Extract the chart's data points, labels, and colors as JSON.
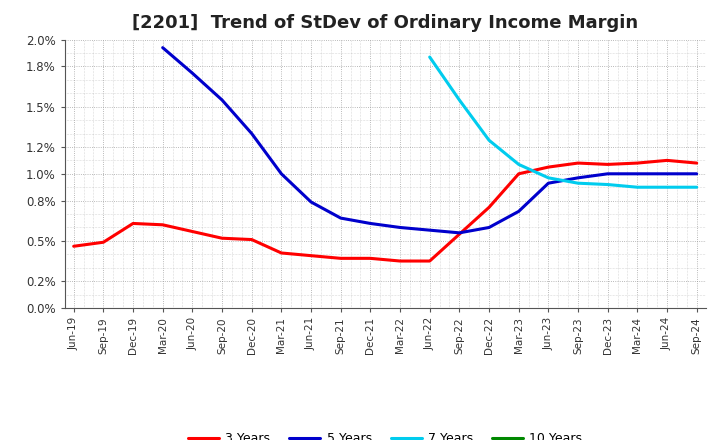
{
  "title": "[2201]  Trend of StDev of Ordinary Income Margin",
  "title_fontsize": 13,
  "background_color": "#ffffff",
  "plot_bg_color": "#ffffff",
  "grid_color": "#999999",
  "x_labels": [
    "Jun-19",
    "Sep-19",
    "Dec-19",
    "Mar-20",
    "Jun-20",
    "Sep-20",
    "Dec-20",
    "Mar-21",
    "Jun-21",
    "Sep-21",
    "Dec-21",
    "Mar-22",
    "Jun-22",
    "Sep-22",
    "Dec-22",
    "Mar-23",
    "Jun-23",
    "Sep-23",
    "Dec-23",
    "Mar-24",
    "Jun-24",
    "Sep-24"
  ],
  "ylim": [
    0.0,
    0.02
  ],
  "yticks": [
    0.0,
    0.002,
    0.005,
    0.008,
    0.01,
    0.012,
    0.015,
    0.018,
    0.02
  ],
  "ytick_labels": [
    "0.0%",
    "0.2%",
    "0.5%",
    "0.8%",
    "1.0%",
    "1.2%",
    "1.5%",
    "1.8%",
    "2.0%"
  ],
  "series": {
    "3 Years": {
      "color": "#ff0000",
      "data": [
        0.0046,
        0.0049,
        0.0063,
        0.0062,
        0.0057,
        0.0052,
        0.0051,
        0.0041,
        0.0039,
        0.0037,
        0.0037,
        0.0035,
        0.0035,
        0.0055,
        0.0075,
        0.01,
        0.0105,
        0.0108,
        0.0107,
        0.0108,
        0.011,
        0.0108
      ]
    },
    "5 Years": {
      "color": "#0000cc",
      "data": [
        null,
        null,
        null,
        0.0194,
        0.0175,
        0.0155,
        0.013,
        0.01,
        0.0079,
        0.0067,
        0.0063,
        0.006,
        0.0058,
        0.0056,
        0.006,
        0.0072,
        0.0093,
        0.0097,
        0.01,
        0.01,
        0.01,
        0.01
      ]
    },
    "7 Years": {
      "color": "#00ccee",
      "data": [
        null,
        null,
        null,
        null,
        null,
        null,
        null,
        null,
        null,
        null,
        null,
        null,
        0.0187,
        0.0155,
        0.0125,
        0.0107,
        0.0097,
        0.0093,
        0.0092,
        0.009,
        0.009,
        0.009
      ]
    },
    "10 Years": {
      "color": "#008800",
      "data": [
        null,
        null,
        null,
        null,
        null,
        null,
        null,
        null,
        null,
        null,
        null,
        null,
        null,
        null,
        null,
        null,
        null,
        null,
        null,
        null,
        null,
        null
      ]
    }
  },
  "linewidth": 2.2
}
